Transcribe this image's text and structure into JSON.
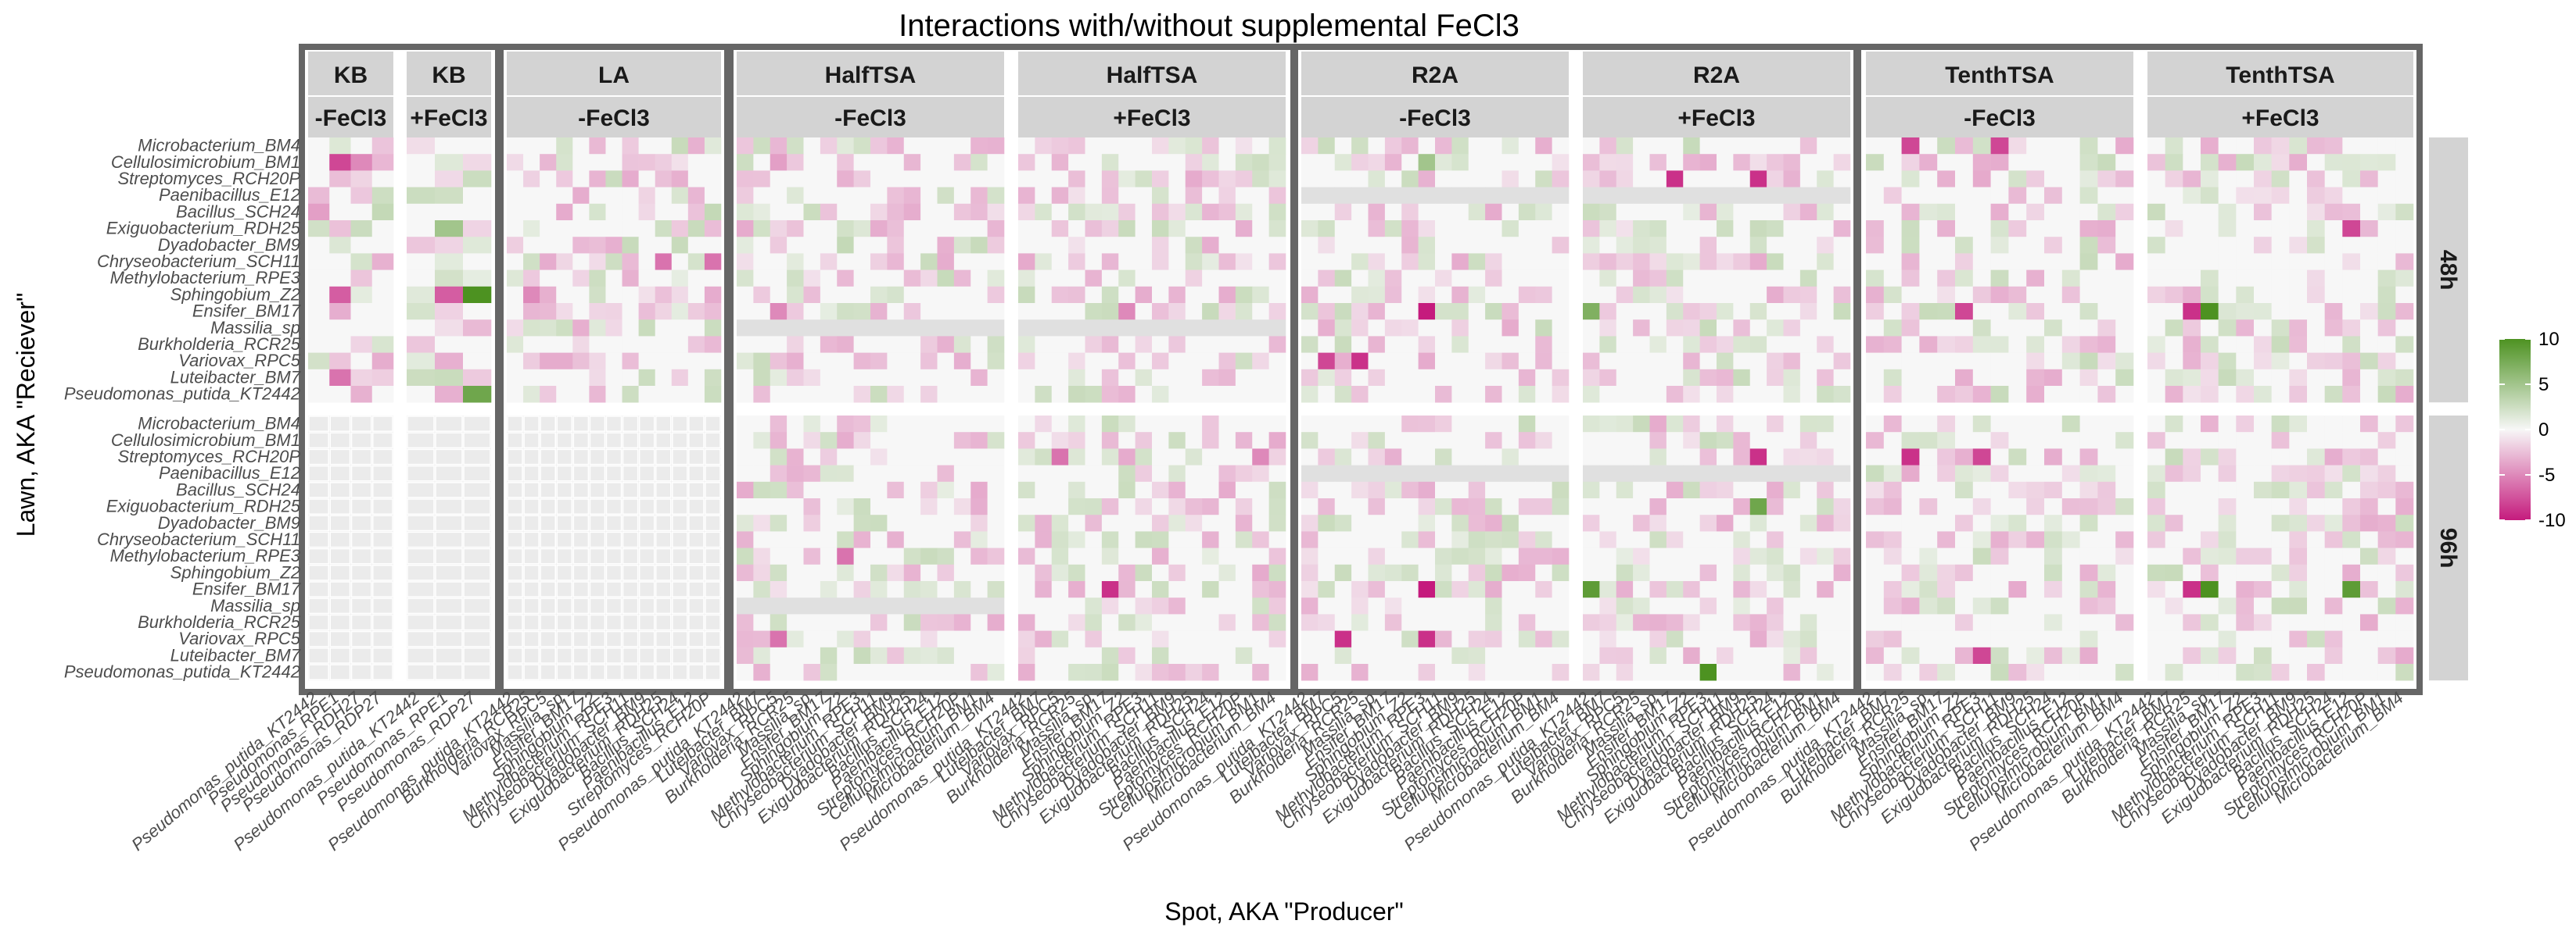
{
  "chart_data": {
    "type": "heatmap",
    "title": "Interactions with/without supplemental FeCl3",
    "xlabel": "Spot, AKA \"Producer\"",
    "ylabel": "Lawn, AKA \"Reciever\"",
    "rows": [
      "Microbacterium_BM4",
      "Cellulosimicrobium_BM1",
      "Streptomyces_RCH20P",
      "Paenibacillus_E12",
      "Bacillus_SCH24",
      "Exiguobacterium_RDH25",
      "Dyadobacter_BM9",
      "Chryseobacterium_SCH11",
      "Methylobacterium_RPE3",
      "Sphingobium_Z2",
      "Ensifer_BM17",
      "Massilia_sp",
      "Burkholderia_RCR25",
      "Variovax_RPC5",
      "Luteibacter_BM7",
      "Pseudomonas_putida_KT2442"
    ],
    "row_groups": [
      "48h",
      "96h"
    ],
    "media": [
      {
        "name": "KB",
        "block": 0,
        "treatment": "-FeCl3",
        "columns": [
          "Pseudomonas_putida_KT2442",
          "Pseudomonas_RPE1",
          "Pseudomonas_RDH27",
          "Pseudomonas_RDP27"
        ]
      },
      {
        "name": "KB",
        "block": 0,
        "treatment": "+FeCl3",
        "columns": [
          "Pseudomonas_putida_KT2442",
          "Pseudomonas_RPE1",
          "Pseudomonas_RDP27"
        ]
      },
      {
        "name": "LA",
        "block": 1,
        "treatment": "-FeCl3",
        "columns": [
          "Pseudomonas_putida_KT2442",
          "Burkholderia_RCR25",
          "Variovax_RPC5",
          "Massilia_sp",
          "Ensifer_BM17",
          "Sphingobium_Z2",
          "Methylobacterium_RPE3",
          "Chryseobacterium_SCH11",
          "Dyadobacter_BM9",
          "Exiguobacterium_RDH25",
          "Bacillus_SCH24",
          "Paenibacillus_E12",
          "Streptomyces_RCH20P"
        ]
      },
      {
        "name": "HalfTSA",
        "block": 2,
        "treatment": "-FeCl3",
        "columns": [
          "Pseudomonas_putida_KT2442",
          "Luteibacter_BM7",
          "Variovax_RPC5",
          "Burkholderia_RCR25",
          "Massilia_sp",
          "Ensifer_BM17",
          "Sphingobium_Z2",
          "Methylobacterium_RPE3",
          "Chryseobacterium_SCH11",
          "Dyadobacter_BM9",
          "Exiguobacterium_RDH25",
          "Bacillus_SCH24",
          "Paenibacillus_E12",
          "Streptomyces_RCH20P",
          "Cellulosimicrobium_BM1",
          "Microbacterium_BM4"
        ]
      },
      {
        "name": "HalfTSA",
        "block": 2,
        "treatment": "+FeCl3",
        "columns": [
          "Pseudomonas_putida_KT2442",
          "Luteibacter_BM7",
          "Variovax_RPC5",
          "Burkholderia_RCR25",
          "Massilia_sp",
          "Ensifer_BM17",
          "Sphingobium_Z2",
          "Methylobacterium_RPE3",
          "Chryseobacterium_SCH11",
          "Dyadobacter_BM9",
          "Exiguobacterium_RDH25",
          "Bacillus_SCH24",
          "Paenibacillus_E12",
          "Streptomyces_RCH20P",
          "Cellulosimicrobium_BM1",
          "Microbacterium_BM4"
        ]
      },
      {
        "name": "R2A",
        "block": 3,
        "treatment": "-FeCl3",
        "columns": [
          "Pseudomonas_putida_KT2442",
          "Luteibacter_BM7",
          "Variovax_RPC5",
          "Burkholderia_RCR25",
          "Massilia_sp",
          "Ensifer_BM17",
          "Sphingobium_Z2",
          "Methylobacterium_RPE3",
          "Chryseobacterium_SCH11",
          "Dyadobacter_BM9",
          "Exiguobacterium_RDH25",
          "Bacillus_SCH24",
          "Paenibacillus_E12",
          "Streptomyces_RCH20P",
          "Cellulosimicrobium_BM1",
          "Microbacterium_BM4"
        ]
      },
      {
        "name": "R2A",
        "block": 3,
        "treatment": "+FeCl3",
        "columns": [
          "Pseudomonas_putida_KT2442",
          "Luteibacter_BM7",
          "Variovax_RPC5",
          "Burkholderia_RCR25",
          "Massilia_sp",
          "Ensifer_BM17",
          "Sphingobium_Z2",
          "Methylobacterium_RPE3",
          "Chryseobacterium_SCH11",
          "Dyadobacter_BM9",
          "Exiguobacterium_RDH25",
          "Bacillus_SCH24",
          "Paenibacillus_E12",
          "Streptomyces_RCH20P",
          "Cellulosimicrobium_BM1",
          "Microbacterium_BM4"
        ]
      },
      {
        "name": "TenthTSA",
        "block": 4,
        "treatment": "-FeCl3",
        "columns": [
          "Pseudomonas_putida_KT2442",
          "Luteibacter_BM7",
          "Burkholderia_RCR25",
          "Massilia_sp",
          "Ensifer_BM17",
          "Sphingobium_Z2",
          "Methylobacterium_RPE3",
          "Chryseobacterium_SCH11",
          "Dyadobacter_BM9",
          "Exiguobacterium_RDH25",
          "Bacillus_SCH24",
          "Paenibacillus_E12",
          "Streptomyces_RCH20P",
          "Cellulosimicrobium_BM1",
          "Microbacterium_BM4"
        ]
      },
      {
        "name": "TenthTSA",
        "block": 4,
        "treatment": "+FeCl3",
        "columns": [
          "Pseudomonas_putida_KT2442",
          "Luteibacter_BM7",
          "Burkholderia_RCR25",
          "Massilia_sp",
          "Ensifer_BM17",
          "Sphingobium_Z2",
          "Methylobacterium_RPE3",
          "Chryseobacterium_SCH11",
          "Dyadobacter_BM9",
          "Exiguobacterium_RDH25",
          "Bacillus_SCH24",
          "Paenibacillus_E12",
          "Streptomyces_RCH20P",
          "Cellulosimicrobium_BM1",
          "Microbacterium_BM4"
        ]
      }
    ],
    "notable_cells": [
      {
        "panel": 0,
        "group": 0,
        "row": 1,
        "col": 1,
        "value": -8
      },
      {
        "panel": 0,
        "group": 0,
        "row": 1,
        "col": 2,
        "value": -5
      },
      {
        "panel": 0,
        "group": 0,
        "row": 4,
        "col": 0,
        "value": -4
      },
      {
        "panel": 0,
        "group": 0,
        "row": 4,
        "col": 3,
        "value": 3
      },
      {
        "panel": 0,
        "group": 0,
        "row": 9,
        "col": 1,
        "value": -7
      },
      {
        "panel": 0,
        "group": 0,
        "row": 14,
        "col": 1,
        "value": -6
      },
      {
        "panel": 1,
        "group": 0,
        "row": 5,
        "col": 1,
        "value": 5
      },
      {
        "panel": 1,
        "group": 0,
        "row": 9,
        "col": 1,
        "value": -7
      },
      {
        "panel": 1,
        "group": 0,
        "row": 9,
        "col": 2,
        "value": 10
      },
      {
        "panel": 1,
        "group": 0,
        "row": 15,
        "col": 2,
        "value": 8
      },
      {
        "panel": 2,
        "group": 0,
        "row": 4,
        "col": 12,
        "value": 3
      },
      {
        "panel": 2,
        "group": 0,
        "row": 7,
        "col": 9,
        "value": -6
      },
      {
        "panel": 2,
        "group": 0,
        "row": 7,
        "col": 12,
        "value": -6
      },
      {
        "panel": 2,
        "group": 0,
        "row": 9,
        "col": 1,
        "value": -5
      },
      {
        "panel": 3,
        "group": 0,
        "row": 1,
        "col": 2,
        "value": -4
      },
      {
        "panel": 3,
        "group": 0,
        "row": 10,
        "col": 2,
        "value": -5
      },
      {
        "panel": 3,
        "group": 0,
        "row": 6,
        "col": 6,
        "value": 3
      },
      {
        "panel": 3,
        "group": 1,
        "row": 1,
        "col": 2,
        "value": -3
      },
      {
        "panel": 3,
        "group": 1,
        "row": 13,
        "col": 2,
        "value": -6
      },
      {
        "panel": 3,
        "group": 1,
        "row": 8,
        "col": 6,
        "value": -6
      },
      {
        "panel": 4,
        "group": 0,
        "row": 1,
        "col": 2,
        "value": -3
      },
      {
        "panel": 4,
        "group": 0,
        "row": 10,
        "col": 6,
        "value": -5
      },
      {
        "panel": 4,
        "group": 1,
        "row": 2,
        "col": 2,
        "value": -6
      },
      {
        "panel": 4,
        "group": 1,
        "row": 10,
        "col": 5,
        "value": -9
      },
      {
        "panel": 4,
        "group": 1,
        "row": 2,
        "col": 14,
        "value": -5
      },
      {
        "panel": 5,
        "group": 0,
        "row": 13,
        "col": 1,
        "value": -8
      },
      {
        "panel": 5,
        "group": 0,
        "row": 13,
        "col": 3,
        "value": -9
      },
      {
        "panel": 5,
        "group": 0,
        "row": 10,
        "col": 7,
        "value": -10
      },
      {
        "panel": 5,
        "group": 0,
        "row": 1,
        "col": 7,
        "value": 5
      },
      {
        "panel": 5,
        "group": 1,
        "row": 13,
        "col": 2,
        "value": -9
      },
      {
        "panel": 5,
        "group": 1,
        "row": 10,
        "col": 7,
        "value": -10
      },
      {
        "panel": 5,
        "group": 1,
        "row": 13,
        "col": 7,
        "value": -9
      },
      {
        "panel": 6,
        "group": 0,
        "row": 2,
        "col": 5,
        "value": -9
      },
      {
        "panel": 6,
        "group": 0,
        "row": 10,
        "col": 0,
        "value": 7
      },
      {
        "panel": 6,
        "group": 0,
        "row": 2,
        "col": 10,
        "value": -9
      },
      {
        "panel": 6,
        "group": 1,
        "row": 2,
        "col": 10,
        "value": -9
      },
      {
        "panel": 6,
        "group": 1,
        "row": 5,
        "col": 10,
        "value": 8
      },
      {
        "panel": 6,
        "group": 1,
        "row": 10,
        "col": 0,
        "value": 9
      },
      {
        "panel": 6,
        "group": 1,
        "row": 15,
        "col": 7,
        "value": 10
      },
      {
        "panel": 7,
        "group": 0,
        "row": 0,
        "col": 2,
        "value": -8
      },
      {
        "panel": 7,
        "group": 0,
        "row": 0,
        "col": 7,
        "value": -8
      },
      {
        "panel": 7,
        "group": 0,
        "row": 10,
        "col": 5,
        "value": -8
      },
      {
        "panel": 7,
        "group": 1,
        "row": 2,
        "col": 2,
        "value": -9
      },
      {
        "panel": 7,
        "group": 1,
        "row": 2,
        "col": 6,
        "value": -8
      },
      {
        "panel": 7,
        "group": 1,
        "row": 14,
        "col": 6,
        "value": -8
      },
      {
        "panel": 8,
        "group": 0,
        "row": 10,
        "col": 2,
        "value": -9
      },
      {
        "panel": 8,
        "group": 0,
        "row": 10,
        "col": 3,
        "value": 10
      },
      {
        "panel": 8,
        "group": 0,
        "row": 5,
        "col": 11,
        "value": -8
      },
      {
        "panel": 8,
        "group": 1,
        "row": 10,
        "col": 2,
        "value": -9
      },
      {
        "panel": 8,
        "group": 1,
        "row": 10,
        "col": 3,
        "value": 10
      },
      {
        "panel": 8,
        "group": 1,
        "row": 10,
        "col": 11,
        "value": 9
      }
    ],
    "missing_rows": [
      {
        "panel": 0,
        "group": 1,
        "all": true
      },
      {
        "panel": 1,
        "group": 1,
        "all": true
      },
      {
        "panel": 2,
        "group": 1,
        "all": true
      },
      {
        "panel": 3,
        "group": 0,
        "row": 11
      },
      {
        "panel": 4,
        "group": 0,
        "row": 11
      },
      {
        "panel": 3,
        "group": 1,
        "row": 11
      },
      {
        "panel": 5,
        "group": 0,
        "row": 3
      },
      {
        "panel": 6,
        "group": 0,
        "row": 3
      },
      {
        "panel": 5,
        "group": 1,
        "row": 3
      },
      {
        "panel": 6,
        "group": 1,
        "row": 3
      }
    ],
    "colorbar": {
      "ticks": [
        10,
        5,
        0,
        -5,
        -10
      ],
      "range": [
        -10,
        10
      ],
      "colors": {
        "high": "#4d9221",
        "mid": "#f7f7f7",
        "low": "#c51b7d"
      }
    }
  }
}
